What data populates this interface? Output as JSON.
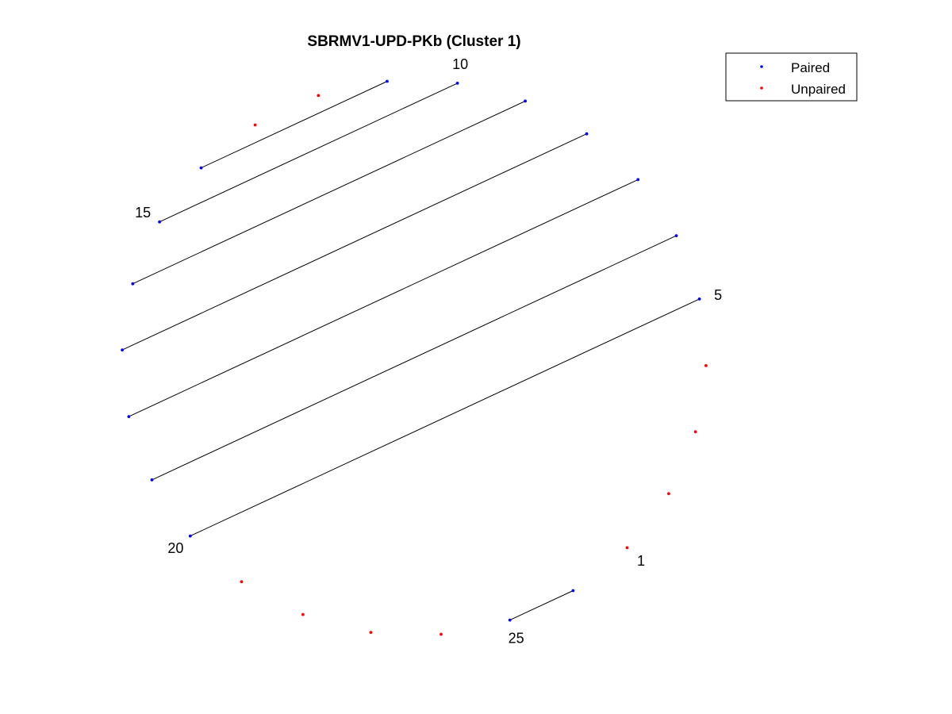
{
  "chart_data": {
    "type": "scatter",
    "title": "SBRMV1-UPD-PKb (Cluster 1)",
    "xlabel": "",
    "ylabel": "",
    "grid": false,
    "axes_visible": false,
    "legend_position": "top-right",
    "n_nodes": 26,
    "pairs": [
      [
        0,
        25
      ],
      [
        5,
        20
      ],
      [
        6,
        19
      ],
      [
        7,
        18
      ],
      [
        8,
        17
      ],
      [
        9,
        16
      ],
      [
        10,
        15
      ],
      [
        11,
        14
      ]
    ],
    "node_labels": [
      {
        "index": 1,
        "text": "1"
      },
      {
        "index": 5,
        "text": "5"
      },
      {
        "index": 10,
        "text": "10"
      },
      {
        "index": 15,
        "text": "15"
      },
      {
        "index": 20,
        "text": "20"
      },
      {
        "index": 25,
        "text": "25"
      }
    ],
    "series": [
      {
        "name": "Paired",
        "color": "#0000ff"
      },
      {
        "name": "Unpaired",
        "color": "#ff0000"
      }
    ],
    "pair_line_color": "#000000"
  }
}
